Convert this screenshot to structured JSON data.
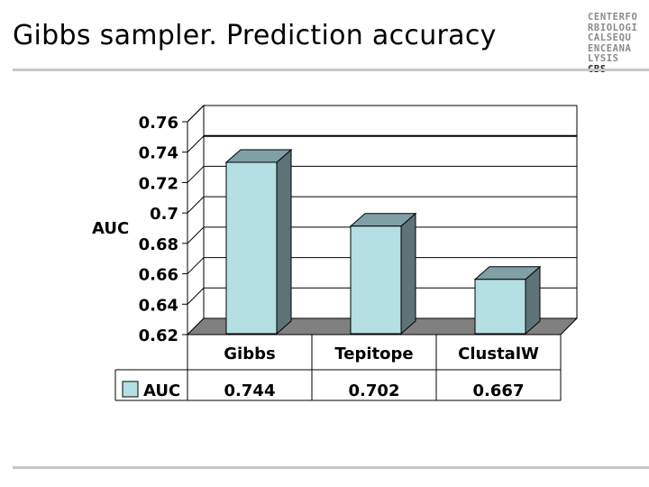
{
  "slide": {
    "title": "Gibbs sampler. Prediction accuracy",
    "logo_lines": [
      "CENTERFO",
      "RBIOLOGI",
      "CALSEQU",
      "ENCEANA",
      "LYSIS"
    ],
    "logo_accent": "CBS"
  },
  "chart_data": {
    "type": "bar",
    "style": "3d-column",
    "categories": [
      "Gibbs",
      "Tepitope",
      "ClustalW"
    ],
    "series": [
      {
        "name": "AUC",
        "values": [
          0.744,
          0.702,
          0.667
        ],
        "color": "#b4e0e4"
      }
    ],
    "ylabel": "AUC",
    "ylim": [
      0.62,
      0.76
    ],
    "yticks": [
      "0.76",
      "0.74",
      "0.72",
      "0.7",
      "0.68",
      "0.66",
      "0.64",
      "0.62"
    ],
    "data_table": {
      "row_label": "AUC",
      "values": [
        "0.744",
        "0.702",
        "0.667"
      ]
    },
    "grid": true,
    "colors": {
      "bar_front": "#b4e0e4",
      "bar_side": "#5d7377",
      "bar_top": "#7fa0a4",
      "floor": "#808080"
    }
  }
}
